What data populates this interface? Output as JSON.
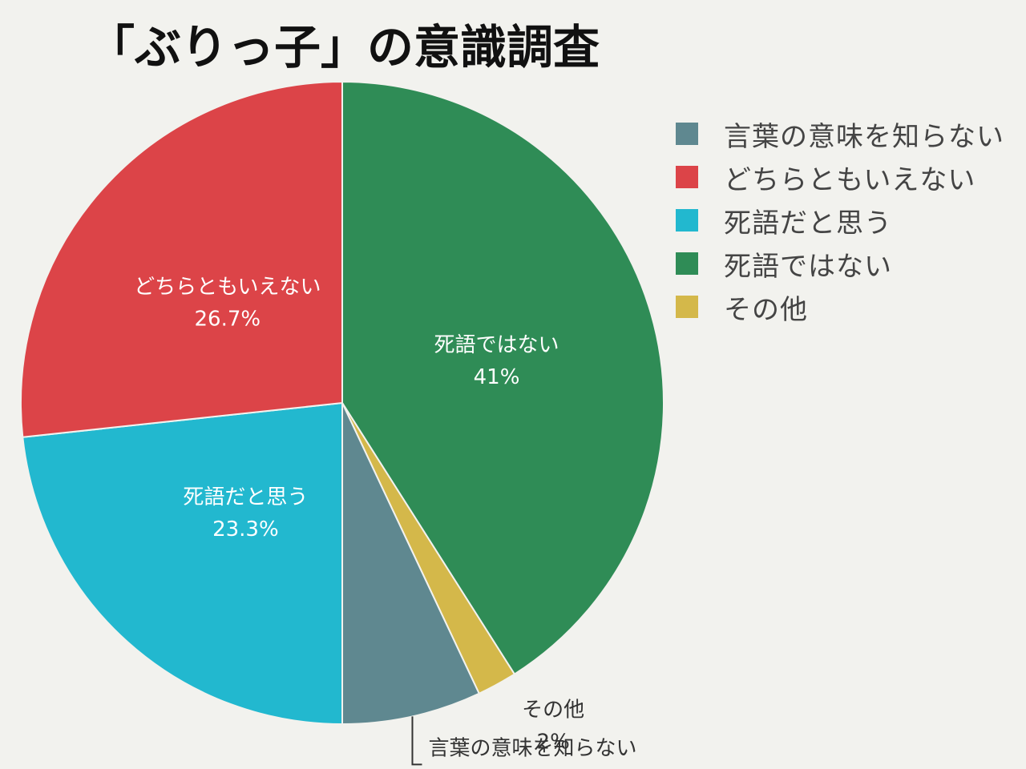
{
  "chart_data": {
    "type": "pie",
    "title": "「ぶりっ子」の意識調査",
    "slices": [
      {
        "name": "死語ではない",
        "value": 41,
        "label": "41%",
        "color": "#2f8c56"
      },
      {
        "name": "その他",
        "value": 2,
        "label": "2%",
        "color": "#d4b84a"
      },
      {
        "name": "言葉の意味を知らない",
        "value": 7,
        "label": "",
        "color": "#5f8890"
      },
      {
        "name": "死語だと思う",
        "value": 23.3,
        "label": "23.3%",
        "color": "#22b8cf"
      },
      {
        "name": "どちらともいえない",
        "value": 26.7,
        "label": "26.7%",
        "color": "#dc4448"
      }
    ],
    "legend": {
      "position": "right",
      "items": [
        {
          "name": "言葉の意味を知らない",
          "color": "#5f8890"
        },
        {
          "name": "どちらともいえない",
          "color": "#dc4448"
        },
        {
          "name": "死語だと思う",
          "color": "#22b8cf"
        },
        {
          "name": "死語ではない",
          "color": "#2f8c56"
        },
        {
          "name": "その他",
          "color": "#d4b84a"
        }
      ]
    }
  }
}
